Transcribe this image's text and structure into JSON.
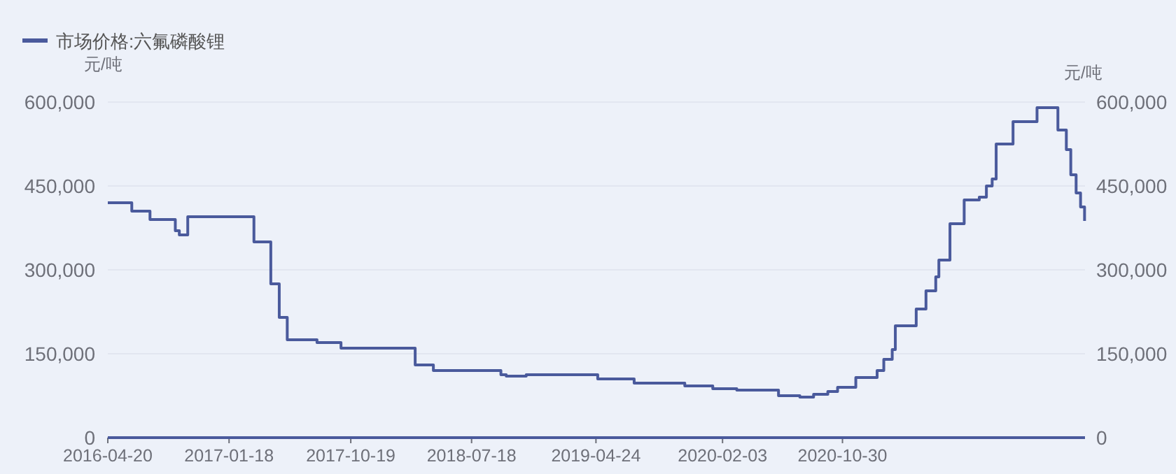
{
  "chart_data": {
    "type": "step",
    "ylabel": "元/吨",
    "y2label": "元/吨",
    "x": [
      "2016-04-20",
      "2016-06-13",
      "2016-07-24",
      "2016-09-19",
      "2016-09-28",
      "2016-10-17",
      "2017-03-15",
      "2017-04-22",
      "2017-05-11",
      "2017-05-29",
      "2017-08-04",
      "2017-09-27",
      "2018-03-13",
      "2018-04-23",
      "2018-09-22",
      "2018-10-04",
      "2018-11-18",
      "2019-04-28",
      "2019-07-19",
      "2019-11-10",
      "2020-01-12",
      "2020-03-06",
      "2020-06-08",
      "2020-07-26",
      "2020-08-26",
      "2020-09-27",
      "2020-10-19",
      "2020-11-29",
      "2021-01-16",
      "2021-01-31",
      "2021-02-19",
      "2021-02-26",
      "2021-04-14",
      "2021-05-06",
      "2021-05-28",
      "2021-06-04",
      "2021-06-29",
      "2021-07-31",
      "2021-09-03",
      "2021-09-19",
      "2021-10-02",
      "2021-10-11",
      "2021-11-18",
      "2022-01-11",
      "2022-02-27",
      "2022-03-18",
      "2022-03-28",
      "2022-04-09",
      "2022-04-19",
      "2022-04-28"
    ],
    "series": [
      {
        "name": "市场价格:六氟磷酸锂",
        "color": "#4a5a9c",
        "values": [
          420000,
          405000,
          390000,
          370000,
          362500,
          395000,
          350000,
          275000,
          215000,
          175000,
          170000,
          160000,
          130000,
          120000,
          112500,
          110000,
          112500,
          105000,
          97500,
          92500,
          87500,
          85000,
          75000,
          72500,
          77500,
          82500,
          90000,
          107500,
          120000,
          140000,
          157500,
          200000,
          230000,
          262500,
          287500,
          317500,
          382500,
          425000,
          430000,
          450000,
          462500,
          525000,
          565000,
          590000,
          550000,
          515000,
          470000,
          437500,
          412500,
          387500
        ]
      }
    ],
    "xlim": [
      "2016-04-20",
      "2022-04-29"
    ],
    "xticks": [
      {
        "value": "2016-04-20",
        "label": "2016-04-20"
      },
      {
        "value": "2017-01-18",
        "label": "2017-01-18"
      },
      {
        "value": "2017-10-19",
        "label": "2017-10-19"
      },
      {
        "value": "2018-07-18",
        "label": "2018-07-18"
      },
      {
        "value": "2019-04-24",
        "label": "2019-04-24"
      },
      {
        "value": "2020-02-03",
        "label": "2020-02-03"
      },
      {
        "value": "2020-10-30",
        "label": "2020-10-30"
      }
    ],
    "ylim": [
      0,
      600000
    ],
    "yticks": [
      {
        "value": 0,
        "label": "0"
      },
      {
        "value": 150000,
        "label": "150,000"
      },
      {
        "value": 300000,
        "label": "300,000"
      },
      {
        "value": 450000,
        "label": "450,000"
      },
      {
        "value": 600000,
        "label": "600,000"
      }
    ],
    "y2lim": [
      0,
      600000
    ],
    "y2ticks": [
      {
        "value": 0,
        "label": "0"
      },
      {
        "value": 150000,
        "label": "150,000"
      },
      {
        "value": 300000,
        "label": "300,000"
      },
      {
        "value": 450000,
        "label": "450,000"
      },
      {
        "value": 600000,
        "label": "600,000"
      }
    ],
    "grid": "y",
    "legend": "top left"
  }
}
